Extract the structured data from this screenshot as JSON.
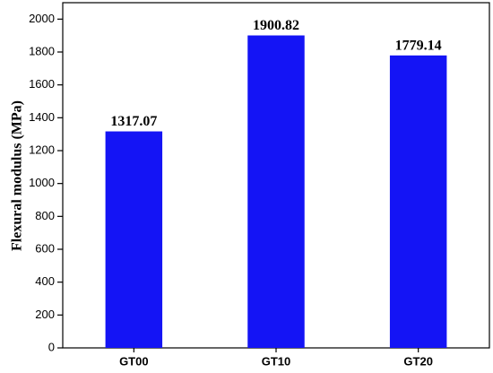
{
  "chart_data": {
    "type": "bar",
    "y_label": "Flexural modulus (MPa)",
    "categories": [
      "GT00",
      "GT10",
      "GT20"
    ],
    "values": [
      1317.07,
      1900.82,
      1779.14
    ],
    "color": "#1414f5",
    "ylim": [
      0,
      2100
    ],
    "yticks": [
      0,
      200,
      400,
      600,
      800,
      1000,
      1200,
      1400,
      1600,
      1800,
      2000
    ],
    "grid": false
  }
}
